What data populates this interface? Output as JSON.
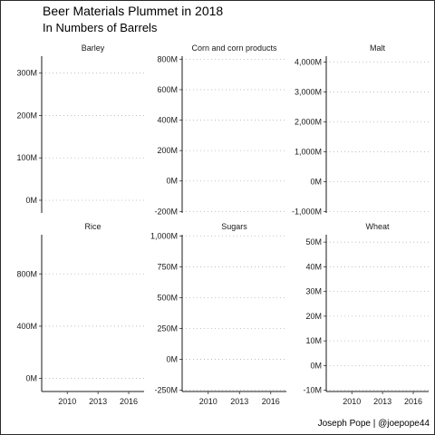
{
  "title": "Beer Materials Plummet in 2018",
  "subtitle": "In Numbers of Barrels",
  "caption": "Joseph Pope | @joepope44",
  "chart_data": {
    "type": "line",
    "title": "Beer Materials Plummet in 2018",
    "subtitle": "In Numbers of Barrels",
    "xlabel": "",
    "ylabel": "",
    "x_ticks": [
      2010,
      2013,
      2016
    ],
    "xlim": [
      2007.5,
      2017.5
    ],
    "grid": "horizontal dotted",
    "legend": "none",
    "facets": [
      {
        "name": "Barley",
        "ylim": [
          -30000000,
          340000000
        ],
        "y_ticks": [
          0,
          100000000,
          200000000,
          300000000
        ],
        "y_tick_labels": [
          "0M",
          "100M",
          "200M",
          "300M"
        ],
        "series": []
      },
      {
        "name": "Corn and corn products",
        "ylim": [
          -210000000,
          820000000
        ],
        "y_ticks": [
          -200000000,
          0,
          200000000,
          400000000,
          600000000,
          800000000
        ],
        "y_tick_labels": [
          "-200M",
          "0M",
          "200M",
          "400M",
          "600M",
          "800M"
        ],
        "series": []
      },
      {
        "name": "Malt",
        "ylim": [
          -1050000000,
          4200000000
        ],
        "y_ticks": [
          -1000000000,
          0,
          1000000000,
          2000000000,
          3000000000,
          4000000000
        ],
        "y_tick_labels": [
          "-1,000M",
          "0M",
          "1,000M",
          "2,000M",
          "3,000M",
          "4,000M"
        ],
        "series": []
      },
      {
        "name": "Rice",
        "ylim": [
          -100000000,
          1100000000
        ],
        "y_ticks": [
          0,
          400000000,
          800000000
        ],
        "y_tick_labels": [
          "0M",
          "400M",
          "800M"
        ],
        "series": []
      },
      {
        "name": "Sugars",
        "ylim": [
          -260000000,
          1010000000
        ],
        "y_ticks": [
          -250000000,
          0,
          250000000,
          500000000,
          750000000,
          1000000000
        ],
        "y_tick_labels": [
          "-250M",
          "0M",
          "250M",
          "500M",
          "750M",
          "1,000M"
        ],
        "series": []
      },
      {
        "name": "Wheat",
        "ylim": [
          -10500000,
          53000000
        ],
        "y_ticks": [
          -10000000,
          0,
          10000000,
          20000000,
          30000000,
          40000000,
          50000000
        ],
        "y_tick_labels": [
          "-10M",
          "0M",
          "10M",
          "20M",
          "30M",
          "40M",
          "50M"
        ],
        "series": []
      }
    ]
  }
}
